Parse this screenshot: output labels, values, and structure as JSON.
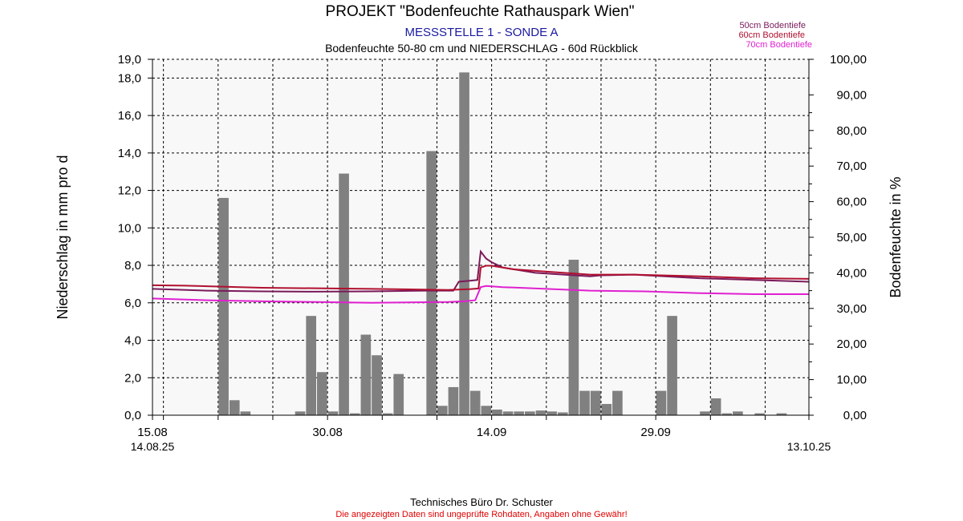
{
  "title": "PROJEKT \"Bodenfeuchte Rathauspark Wien\"",
  "subtitle1": "MESSSTELLE 1 - SONDE A",
  "subtitle2": "Bodenfeuchte 50-80 cm und NIEDERSCHLAG - 60d Rückblick",
  "footer": "Technisches Büro Dr. Schuster",
  "disclaimer": "Die angezeigten Daten sind ungeprüfte Rohdaten, Angaben ohne Gewähr!",
  "legend": [
    {
      "label": "50cm Bodentiefe",
      "color": "#7a1a5a"
    },
    {
      "label": "60cm Bodentiefe",
      "color": "#b01030"
    },
    {
      "label": "70cm Bodentiefe",
      "color": "#e020d0"
    }
  ],
  "colors": {
    "bars": "#808080",
    "subtitle1": "#1a1aa0",
    "disclaimer": "#e00000",
    "plot_bg": "#f8f8f8"
  },
  "chart_data": {
    "type": "bar+line",
    "x_start_label": "14.08.25",
    "x_end_label": "13.10.25",
    "x_ticks": [
      {
        "day": 1,
        "label": "15.08"
      },
      {
        "day": 16,
        "label": "30.08"
      },
      {
        "day": 31,
        "label": "14.09"
      },
      {
        "day": 46,
        "label": "29.09"
      }
    ],
    "x_range_days": [
      0,
      60
    ],
    "ylabel_left": "Niederschlag in mm pro d",
    "ylabel_right": "Bodenfeuchte in %",
    "ylim_left": [
      0,
      19
    ],
    "ylim_right": [
      0,
      100
    ],
    "left_ticks": [
      "0,0",
      "2,0",
      "4,0",
      "6,0",
      "8,0",
      "10,0",
      "12,0",
      "14,0",
      "16,0",
      "18,0",
      "19,0"
    ],
    "left_tick_values": [
      0,
      2,
      4,
      6,
      8,
      10,
      12,
      14,
      16,
      18,
      19
    ],
    "right_ticks": [
      "0,00",
      "10,00",
      "20,00",
      "30,00",
      "40,00",
      "50,00",
      "60,00",
      "70,00",
      "80,00",
      "90,00",
      "100,00"
    ],
    "right_tick_values": [
      0,
      10,
      20,
      30,
      40,
      50,
      60,
      70,
      80,
      90,
      100
    ],
    "grid": true,
    "precipitation": {
      "name": "Niederschlag",
      "days": [
        6,
        7,
        8,
        13,
        14,
        15,
        16,
        17,
        18,
        19,
        20,
        21,
        22,
        25,
        26,
        27,
        28,
        29,
        30,
        31,
        32,
        33,
        34,
        35,
        36,
        37,
        38,
        39,
        40,
        41,
        42,
        46,
        47,
        50,
        51,
        52,
        53,
        55,
        57
      ],
      "values": [
        11.6,
        0.8,
        0.2,
        0.2,
        5.3,
        2.3,
        0.2,
        12.9,
        0.1,
        4.3,
        3.2,
        0.1,
        2.2,
        14.1,
        0.5,
        1.5,
        18.3,
        1.3,
        0.5,
        0.3,
        0.2,
        0.2,
        0.2,
        0.25,
        0.2,
        0.15,
        8.3,
        1.3,
        1.3,
        0.6,
        1.3,
        1.3,
        5.3,
        0.2,
        0.9,
        0.1,
        0.2,
        0.1,
        0.1
      ]
    },
    "series": [
      {
        "name": "50cm Bodentiefe",
        "x": [
          0,
          5,
          10,
          15,
          20,
          25,
          27.5,
          28,
          29,
          29.7,
          30,
          30.5,
          31,
          32,
          35,
          40,
          41,
          44,
          50,
          55,
          60
        ],
        "y": [
          35.5,
          35.0,
          34.8,
          34.7,
          34.8,
          35.0,
          35.0,
          37.5,
          37.8,
          38.0,
          46.0,
          44.0,
          43.0,
          41.5,
          40.0,
          39.0,
          39.3,
          39.5,
          38.5,
          38.0,
          37.5
        ]
      },
      {
        "name": "60cm Bodentiefe",
        "x": [
          0,
          3,
          10,
          20,
          27,
          28,
          29,
          29.8,
          30,
          30.5,
          31,
          33,
          40,
          44,
          50,
          55,
          60
        ],
        "y": [
          36.5,
          36.4,
          35.8,
          35.5,
          35.2,
          35.3,
          35.4,
          35.6,
          41.5,
          42.0,
          42.0,
          41.0,
          39.5,
          39.5,
          39.0,
          38.5,
          38.3
        ]
      },
      {
        "name": "70cm Bodentiefe",
        "x": [
          0,
          5,
          10,
          15,
          20,
          27,
          28.5,
          29.5,
          30,
          30.5,
          32,
          40,
          45,
          50,
          55,
          60
        ],
        "y": [
          32.8,
          32.3,
          32.0,
          31.8,
          31.6,
          31.8,
          32.0,
          32.3,
          36.0,
          36.3,
          36.0,
          35.0,
          34.8,
          34.3,
          34.0,
          34.0
        ]
      }
    ]
  }
}
